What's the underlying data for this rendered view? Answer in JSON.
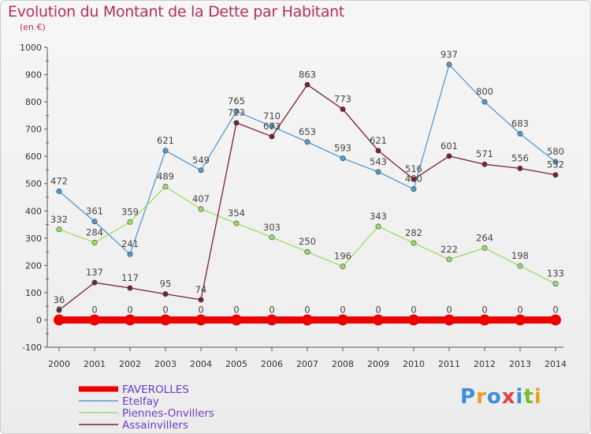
{
  "chart_data": {
    "type": "line",
    "title": "Evolution du Montant de la Dette par Habitant",
    "subtitle": "(en €)",
    "x": [
      "2000",
      "2001",
      "2002",
      "2003",
      "2004",
      "2005",
      "2006",
      "2007",
      "2008",
      "2009",
      "2010",
      "2011",
      "2012",
      "2013",
      "2014"
    ],
    "ylim": [
      -100,
      1000
    ],
    "yticks": [
      -100,
      0,
      100,
      200,
      300,
      400,
      500,
      600,
      700,
      800,
      900,
      1000
    ],
    "grid": false,
    "legend_position": "bottom-left",
    "series": [
      {
        "name": "FAVEROLLES",
        "color": "#ee0000",
        "values": [
          0,
          0,
          0,
          0,
          0,
          0,
          0,
          0,
          0,
          0,
          0,
          0,
          0,
          0,
          0
        ]
      },
      {
        "name": "Etelfay",
        "color": "#5599cc",
        "values": [
          472,
          361,
          241,
          621,
          549,
          765,
          710,
          653,
          593,
          543,
          480,
          937,
          800,
          683,
          580
        ]
      },
      {
        "name": "Piennes-Onvillers",
        "color": "#99dd66",
        "values": [
          332,
          284,
          359,
          489,
          407,
          354,
          303,
          250,
          196,
          343,
          282,
          222,
          264,
          198,
          133
        ]
      },
      {
        "name": "Assainvillers",
        "color": "#772233",
        "values": [
          36,
          137,
          117,
          95,
          74,
          723,
          673,
          863,
          773,
          621,
          516,
          601,
          571,
          556,
          532
        ]
      }
    ]
  },
  "logo": {
    "text": "Proxiti"
  }
}
